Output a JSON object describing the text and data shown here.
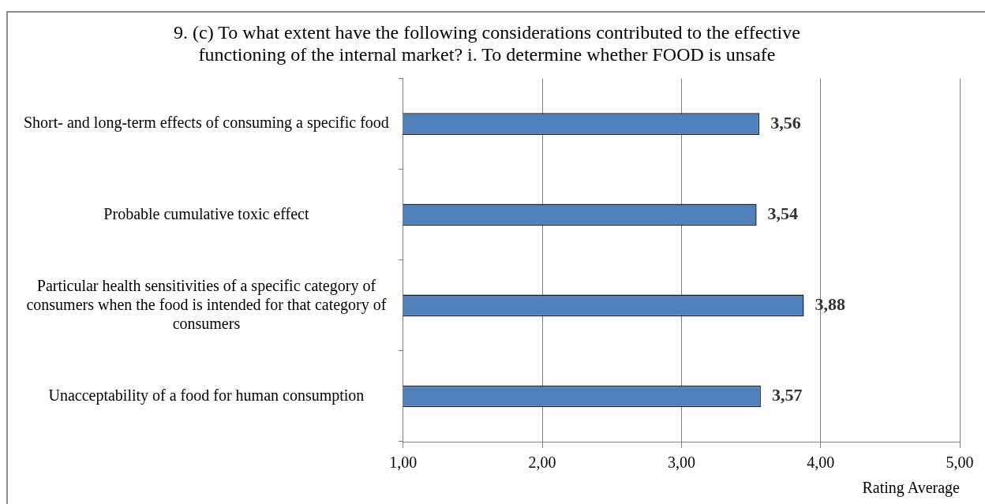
{
  "chart_data": {
    "type": "bar",
    "orientation": "horizontal",
    "title": "9. (c) To what extent have the following considerations contributed to the effective functioning of the internal market? i. To determine whether FOOD is unsafe",
    "xlabel": "Rating Average",
    "categories": [
      "Short- and long-term effects of consuming a specific food",
      "Probable cumulative toxic effect",
      "Particular health sensitivities of a specific category of consumers when the food is intended for that category of consumers",
      "Unacceptability of a food for human consumption"
    ],
    "values": [
      3.56,
      3.54,
      3.88,
      3.57
    ],
    "color": "#4f81bd",
    "value_labels": [
      "3,56",
      "3,54",
      "3,88",
      "3,57"
    ],
    "xlim": [
      1,
      5
    ],
    "xticks": [
      {
        "value": 1,
        "label": "1,00"
      },
      {
        "value": 2,
        "label": "2,00"
      },
      {
        "value": 3,
        "label": "3,00"
      },
      {
        "value": 4,
        "label": "4,00"
      },
      {
        "value": 5,
        "label": "5,00"
      }
    ],
    "grid": "x",
    "legend": false
  }
}
